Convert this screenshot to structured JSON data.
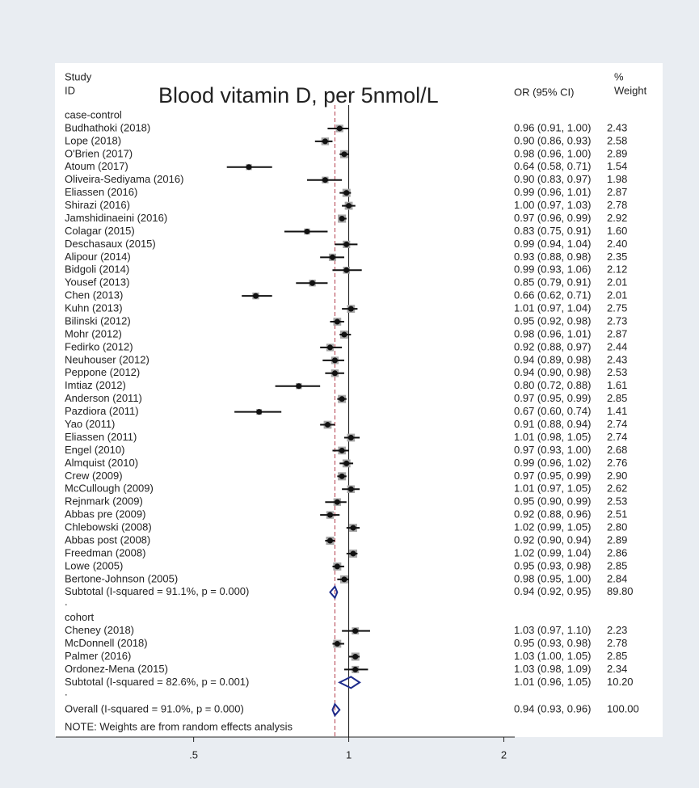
{
  "chart_data": {
    "type": "forest",
    "title": "Blood vitamin D, per 5nmol/L",
    "study_header": "Study",
    "id_header": "ID",
    "ci_header": "OR (95% CI)",
    "weight_header_1": "%",
    "weight_header_2": "Weight",
    "log_scale": true,
    "xlim": [
      0.27,
      2.1
    ],
    "xticks": [
      {
        "value": 0.5,
        "label": ".5"
      },
      1,
      2
    ],
    "marker_color": "#111111",
    "square_color": "#a6a6a6",
    "diamond_color": "#1c2a8a",
    "reference_color": "#b23a4a",
    "groups": [
      {
        "label": "case-control",
        "spacer": ".",
        "studies": [
          {
            "name": "Budhathoki (2018)",
            "or": 0.96,
            "lo": 0.91,
            "hi": 1.0,
            "weight": 2.43,
            "ci_label": "0.96 (0.91, 1.00)",
            "weight_label": "2.43"
          },
          {
            "name": "Lope (2018)",
            "or": 0.9,
            "lo": 0.86,
            "hi": 0.93,
            "weight": 2.58,
            "ci_label": "0.90 (0.86, 0.93)",
            "weight_label": "2.58"
          },
          {
            "name": "O'Brien (2017)",
            "or": 0.98,
            "lo": 0.96,
            "hi": 1.0,
            "weight": 2.89,
            "ci_label": "0.98 (0.96, 1.00)",
            "weight_label": "2.89"
          },
          {
            "name": "Atoum (2017)",
            "or": 0.64,
            "lo": 0.58,
            "hi": 0.71,
            "weight": 1.54,
            "ci_label": "0.64 (0.58, 0.71)",
            "weight_label": "1.54"
          },
          {
            "name": "Oliveira-Sediyama (2016)",
            "or": 0.9,
            "lo": 0.83,
            "hi": 0.97,
            "weight": 1.98,
            "ci_label": "0.90 (0.83, 0.97)",
            "weight_label": "1.98"
          },
          {
            "name": "Eliassen (2016)",
            "or": 0.99,
            "lo": 0.96,
            "hi": 1.01,
            "weight": 2.87,
            "ci_label": "0.99 (0.96, 1.01)",
            "weight_label": "2.87"
          },
          {
            "name": "Shirazi (2016)",
            "or": 1.0,
            "lo": 0.97,
            "hi": 1.03,
            "weight": 2.78,
            "ci_label": "1.00 (0.97, 1.03)",
            "weight_label": "2.78"
          },
          {
            "name": "Jamshidinaeini (2016)",
            "or": 0.97,
            "lo": 0.96,
            "hi": 0.99,
            "weight": 2.92,
            "ci_label": "0.97 (0.96, 0.99)",
            "weight_label": "2.92"
          },
          {
            "name": "Colagar (2015)",
            "or": 0.83,
            "lo": 0.75,
            "hi": 0.91,
            "weight": 1.6,
            "ci_label": "0.83 (0.75, 0.91)",
            "weight_label": "1.60"
          },
          {
            "name": "Deschasaux (2015)",
            "or": 0.99,
            "lo": 0.94,
            "hi": 1.04,
            "weight": 2.4,
            "ci_label": "0.99 (0.94, 1.04)",
            "weight_label": "2.40"
          },
          {
            "name": "Alipour (2014)",
            "or": 0.93,
            "lo": 0.88,
            "hi": 0.98,
            "weight": 2.35,
            "ci_label": "0.93 (0.88, 0.98)",
            "weight_label": "2.35"
          },
          {
            "name": "Bidgoli (2014)",
            "or": 0.99,
            "lo": 0.93,
            "hi": 1.06,
            "weight": 2.12,
            "ci_label": "0.99 (0.93, 1.06)",
            "weight_label": "2.12"
          },
          {
            "name": "Yousef (2013)",
            "or": 0.85,
            "lo": 0.79,
            "hi": 0.91,
            "weight": 2.01,
            "ci_label": "0.85 (0.79, 0.91)",
            "weight_label": "2.01"
          },
          {
            "name": "Chen (2013)",
            "or": 0.66,
            "lo": 0.62,
            "hi": 0.71,
            "weight": 2.01,
            "ci_label": "0.66 (0.62, 0.71)",
            "weight_label": "2.01"
          },
          {
            "name": "Kuhn (2013)",
            "or": 1.01,
            "lo": 0.97,
            "hi": 1.04,
            "weight": 2.75,
            "ci_label": "1.01 (0.97, 1.04)",
            "weight_label": "2.75"
          },
          {
            "name": "Bilinski (2012)",
            "or": 0.95,
            "lo": 0.92,
            "hi": 0.98,
            "weight": 2.73,
            "ci_label": "0.95 (0.92, 0.98)",
            "weight_label": "2.73"
          },
          {
            "name": "Mohr (2012)",
            "or": 0.98,
            "lo": 0.96,
            "hi": 1.01,
            "weight": 2.87,
            "ci_label": "0.98 (0.96, 1.01)",
            "weight_label": "2.87"
          },
          {
            "name": "Fedirko (2012)",
            "or": 0.92,
            "lo": 0.88,
            "hi": 0.97,
            "weight": 2.44,
            "ci_label": "0.92 (0.88, 0.97)",
            "weight_label": "2.44"
          },
          {
            "name": "Neuhouser (2012)",
            "or": 0.94,
            "lo": 0.89,
            "hi": 0.98,
            "weight": 2.43,
            "ci_label": "0.94 (0.89, 0.98)",
            "weight_label": "2.43"
          },
          {
            "name": "Peppone (2012)",
            "or": 0.94,
            "lo": 0.9,
            "hi": 0.98,
            "weight": 2.53,
            "ci_label": "0.94 (0.90, 0.98)",
            "weight_label": "2.53"
          },
          {
            "name": "Imtiaz (2012)",
            "or": 0.8,
            "lo": 0.72,
            "hi": 0.88,
            "weight": 1.61,
            "ci_label": "0.80 (0.72, 0.88)",
            "weight_label": "1.61"
          },
          {
            "name": "Anderson (2011)",
            "or": 0.97,
            "lo": 0.95,
            "hi": 0.99,
            "weight": 2.85,
            "ci_label": "0.97 (0.95, 0.99)",
            "weight_label": "2.85"
          },
          {
            "name": "Pazdiora (2011)",
            "or": 0.67,
            "lo": 0.6,
            "hi": 0.74,
            "weight": 1.41,
            "ci_label": "0.67 (0.60, 0.74)",
            "weight_label": "1.41"
          },
          {
            "name": "Yao (2011)",
            "or": 0.91,
            "lo": 0.88,
            "hi": 0.94,
            "weight": 2.74,
            "ci_label": "0.91 (0.88, 0.94)",
            "weight_label": "2.74"
          },
          {
            "name": "Eliassen (2011)",
            "or": 1.01,
            "lo": 0.98,
            "hi": 1.05,
            "weight": 2.74,
            "ci_label": "1.01 (0.98, 1.05)",
            "weight_label": "2.74"
          },
          {
            "name": "Engel (2010)",
            "or": 0.97,
            "lo": 0.93,
            "hi": 1.0,
            "weight": 2.68,
            "ci_label": "0.97 (0.93, 1.00)",
            "weight_label": "2.68"
          },
          {
            "name": "Almquist (2010)",
            "or": 0.99,
            "lo": 0.96,
            "hi": 1.02,
            "weight": 2.76,
            "ci_label": "0.99 (0.96, 1.02)",
            "weight_label": "2.76"
          },
          {
            "name": "Crew (2009)",
            "or": 0.97,
            "lo": 0.95,
            "hi": 0.99,
            "weight": 2.9,
            "ci_label": "0.97 (0.95, 0.99)",
            "weight_label": "2.90"
          },
          {
            "name": "McCullough (2009)",
            "or": 1.01,
            "lo": 0.97,
            "hi": 1.05,
            "weight": 2.62,
            "ci_label": "1.01 (0.97, 1.05)",
            "weight_label": "2.62"
          },
          {
            "name": "Rejnmark (2009)",
            "or": 0.95,
            "lo": 0.9,
            "hi": 0.99,
            "weight": 2.53,
            "ci_label": "0.95 (0.90, 0.99)",
            "weight_label": "2.53"
          },
          {
            "name": "Abbas pre (2009)",
            "or": 0.92,
            "lo": 0.88,
            "hi": 0.96,
            "weight": 2.51,
            "ci_label": "0.92 (0.88, 0.96)",
            "weight_label": "2.51"
          },
          {
            "name": "Chlebowski (2008)",
            "or": 1.02,
            "lo": 0.99,
            "hi": 1.05,
            "weight": 2.8,
            "ci_label": "1.02 (0.99, 1.05)",
            "weight_label": "2.80"
          },
          {
            "name": "Abbas post (2008)",
            "or": 0.92,
            "lo": 0.9,
            "hi": 0.94,
            "weight": 2.89,
            "ci_label": "0.92 (0.90, 0.94)",
            "weight_label": "2.89"
          },
          {
            "name": "Freedman (2008)",
            "or": 1.02,
            "lo": 0.99,
            "hi": 1.04,
            "weight": 2.86,
            "ci_label": "1.02 (0.99, 1.04)",
            "weight_label": "2.86"
          },
          {
            "name": "Lowe (2005)",
            "or": 0.95,
            "lo": 0.93,
            "hi": 0.98,
            "weight": 2.85,
            "ci_label": "0.95 (0.93, 0.98)",
            "weight_label": "2.85"
          },
          {
            "name": "Bertone-Johnson (2005)",
            "or": 0.98,
            "lo": 0.95,
            "hi": 1.0,
            "weight": 2.84,
            "ci_label": "0.98 (0.95, 1.00)",
            "weight_label": "2.84"
          }
        ],
        "subtotal": {
          "name": "Subtotal  (I-squared = 91.1%, p = 0.000)",
          "or": 0.94,
          "lo": 0.92,
          "hi": 0.95,
          "weight": 89.8,
          "ci_label": "0.94 (0.92, 0.95)",
          "weight_label": "89.80"
        }
      },
      {
        "label": "cohort",
        "spacer": ".",
        "studies": [
          {
            "name": "Cheney (2018)",
            "or": 1.03,
            "lo": 0.97,
            "hi": 1.1,
            "weight": 2.23,
            "ci_label": "1.03 (0.97, 1.10)",
            "weight_label": "2.23"
          },
          {
            "name": "McDonnell (2018)",
            "or": 0.95,
            "lo": 0.93,
            "hi": 0.98,
            "weight": 2.78,
            "ci_label": "0.95 (0.93, 0.98)",
            "weight_label": "2.78"
          },
          {
            "name": "Palmer (2016)",
            "or": 1.03,
            "lo": 1.0,
            "hi": 1.05,
            "weight": 2.85,
            "ci_label": "1.03 (1.00, 1.05)",
            "weight_label": "2.85"
          },
          {
            "name": "Ordonez-Mena (2015)",
            "or": 1.03,
            "lo": 0.98,
            "hi": 1.09,
            "weight": 2.34,
            "ci_label": "1.03 (0.98, 1.09)",
            "weight_label": "2.34"
          }
        ],
        "subtotal": {
          "name": "Subtotal  (I-squared = 82.6%, p = 0.001)",
          "or": 1.01,
          "lo": 0.96,
          "hi": 1.05,
          "weight": 10.2,
          "ci_label": "1.01 (0.96, 1.05)",
          "weight_label": "10.20"
        }
      }
    ],
    "overall": {
      "name": "Overall  (I-squared = 91.0%, p = 0.000)",
      "or": 0.94,
      "lo": 0.93,
      "hi": 0.96,
      "weight": 100.0,
      "ci_label": "0.94 (0.93, 0.96)",
      "weight_label": "100.00"
    },
    "note": "NOTE: Weights are from random effects analysis"
  }
}
